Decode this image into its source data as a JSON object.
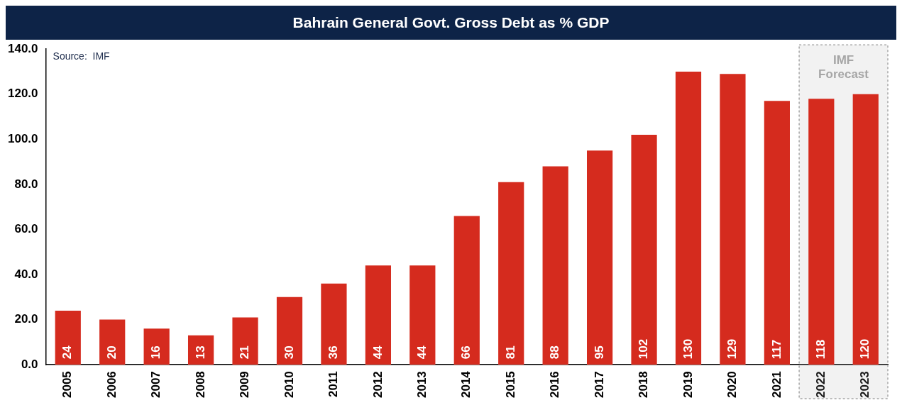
{
  "chart_data": {
    "type": "bar",
    "title": "Bahrain General Govt. Gross Debt as % GDP",
    "categories": [
      "2005",
      "2006",
      "2007",
      "2008",
      "2009",
      "2010",
      "2011",
      "2012",
      "2013",
      "2014",
      "2015",
      "2016",
      "2017",
      "2018",
      "2019",
      "2020",
      "2021",
      "2022",
      "2023"
    ],
    "values": [
      24,
      20,
      16,
      13,
      21,
      30,
      36,
      44,
      44,
      66,
      81,
      88,
      95,
      102,
      130,
      129,
      117,
      118,
      120
    ],
    "color": "#d52b1e",
    "data_labels": true,
    "ylim": [
      0,
      140
    ],
    "yticks": [
      {
        "value": 0,
        "label": "0.0"
      },
      {
        "value": 20,
        "label": "20.0"
      },
      {
        "value": 40,
        "label": "40.0"
      },
      {
        "value": 60,
        "label": "60.0"
      },
      {
        "value": 80,
        "label": "80.0"
      },
      {
        "value": 100,
        "label": "100.0"
      },
      {
        "value": 120,
        "label": "120.0"
      },
      {
        "value": 140,
        "label": "140.0"
      }
    ],
    "grid": false,
    "legend": false,
    "bands": [
      {
        "axis": "x",
        "from": "2022",
        "to": "2023",
        "label": "IMF Forecast",
        "color": "#a6a6a6"
      }
    ],
    "annotations": [
      "Source:  IMF"
    ]
  }
}
